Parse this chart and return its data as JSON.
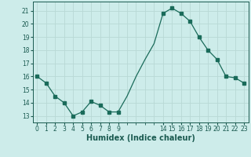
{
  "x": [
    0,
    1,
    2,
    3,
    4,
    5,
    6,
    7,
    8,
    9,
    10,
    11,
    12,
    13,
    14,
    15,
    16,
    17,
    18,
    19,
    20,
    21,
    22,
    23
  ],
  "y": [
    16.0,
    15.5,
    14.5,
    14.0,
    13.0,
    13.3,
    14.1,
    13.8,
    13.3,
    13.3,
    14.5,
    16.0,
    17.3,
    18.5,
    20.8,
    21.2,
    20.8,
    20.2,
    19.0,
    18.0,
    17.3,
    16.0,
    15.9,
    15.5
  ],
  "markers_x": [
    0,
    1,
    2,
    3,
    4,
    5,
    6,
    7,
    8,
    9,
    14,
    15,
    16,
    17,
    18,
    19,
    20,
    21,
    22,
    23
  ],
  "markers_y": [
    16.0,
    15.5,
    14.5,
    14.0,
    13.0,
    13.3,
    14.1,
    13.8,
    13.3,
    13.3,
    20.8,
    21.2,
    20.8,
    20.2,
    19.0,
    18.0,
    17.3,
    16.0,
    15.9,
    15.5
  ],
  "xlabel": "Humidex (Indice chaleur)",
  "xlim": [
    -0.5,
    23.5
  ],
  "ylim": [
    12.5,
    21.7
  ],
  "yticks": [
    13,
    14,
    15,
    16,
    17,
    18,
    19,
    20,
    21
  ],
  "xticks": [
    0,
    1,
    2,
    3,
    4,
    5,
    6,
    7,
    8,
    9,
    14,
    15,
    16,
    17,
    18,
    19,
    20,
    21,
    22,
    23
  ],
  "line_color": "#1a6b5a",
  "marker_color": "#1a6b5a",
  "bg_color": "#cdecea",
  "grid_color": "#b8d8d5",
  "fig_bg": "#cdecea",
  "font_color": "#1a5a50",
  "spine_color": "#1a5a50"
}
